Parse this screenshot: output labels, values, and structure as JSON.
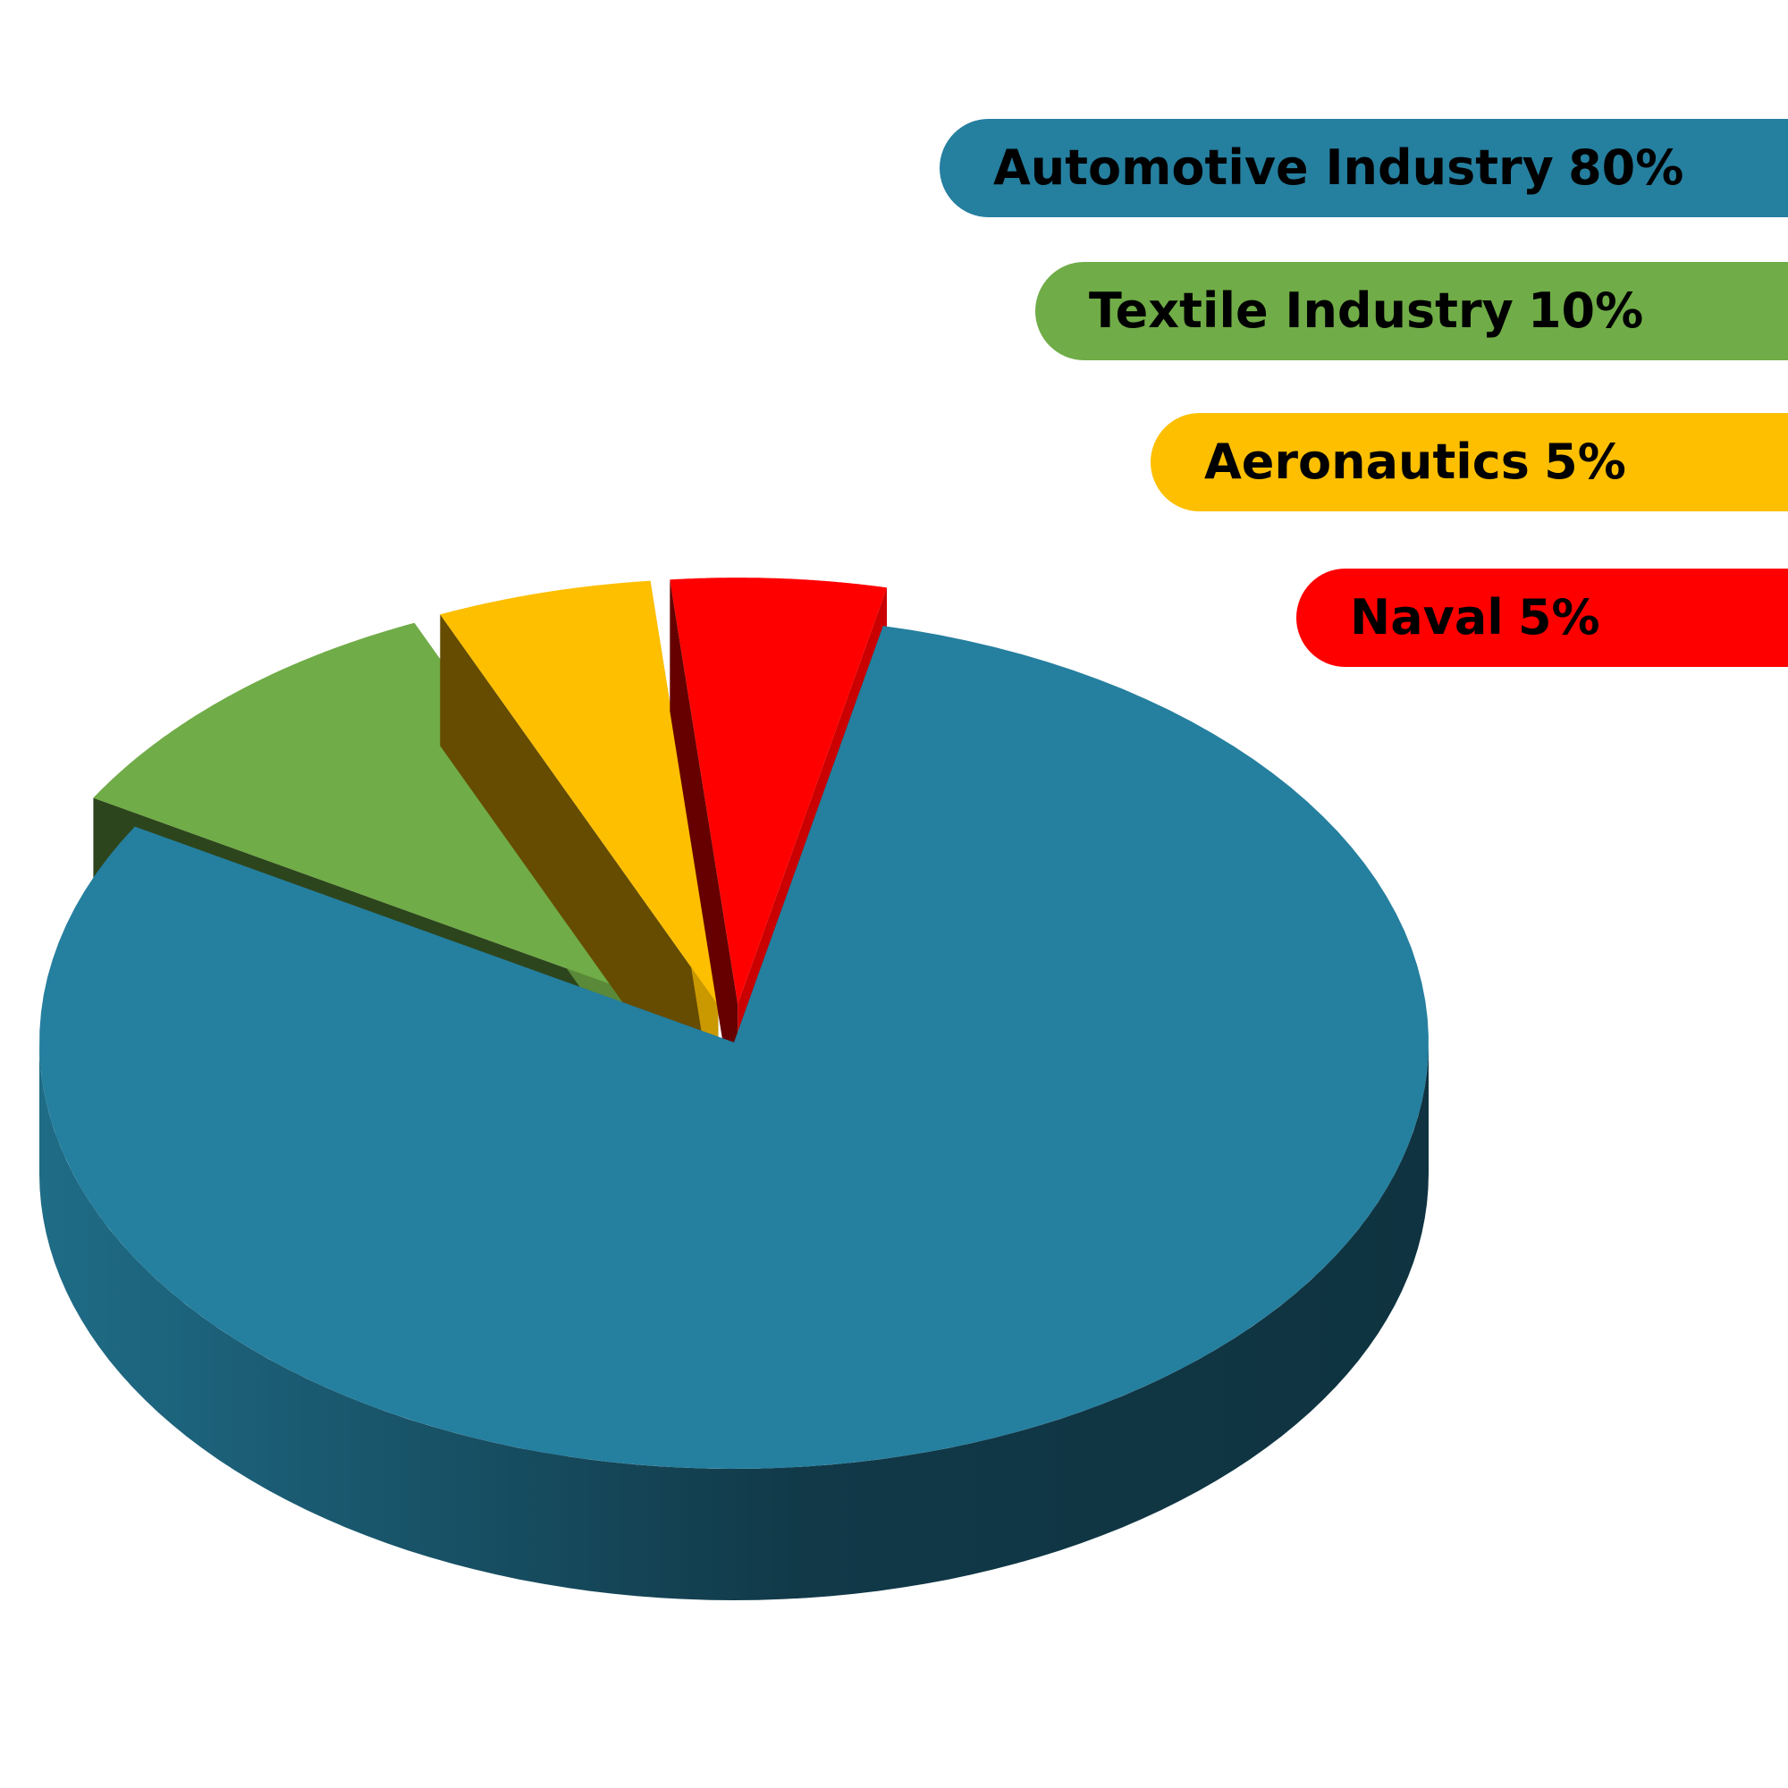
{
  "chart_data": {
    "type": "pie",
    "categories": [
      "Automotive Industry",
      "Textile Industry",
      "Aeronautics",
      "Naval"
    ],
    "values": [
      80,
      10,
      5,
      5
    ],
    "value_labels": [
      "80%",
      "10%",
      "5%",
      "5%"
    ],
    "colors": [
      "#257f9f",
      "#70ac47",
      "#fdbf00",
      "#fe0000"
    ]
  }
}
